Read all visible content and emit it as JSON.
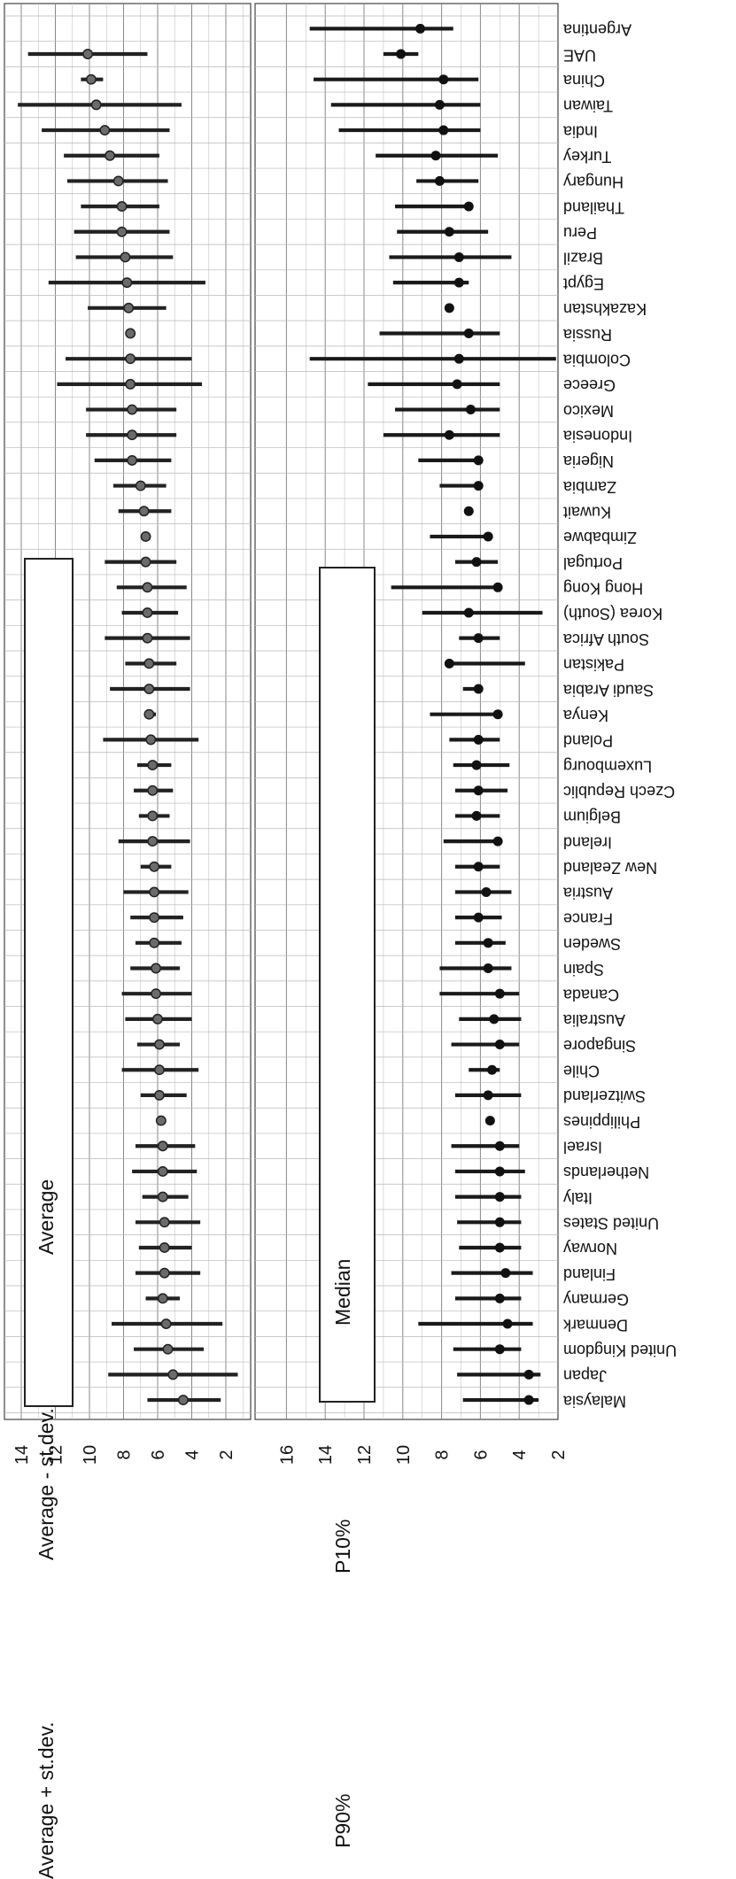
{
  "chart_data": [
    {
      "type": "range",
      "panel": "left",
      "xlim": [
        0,
        14
      ],
      "xticks": [
        "14",
        "12",
        "10",
        "8",
        "6",
        "4",
        "2"
      ],
      "grid": true,
      "legend": [
        "Average + st.dev.",
        "Average - st.dev.",
        "Average"
      ],
      "series": [
        {
          "name": "Average + st.dev.",
          "values": [
            6.6,
            8.9,
            7.4,
            8.7,
            6.7,
            7.3,
            7.1,
            7.3,
            6.9,
            7.5,
            7.3,
            5.8,
            7.0,
            8.1,
            7.2,
            7.9,
            8.1,
            7.6,
            7.3,
            7.6,
            8.0,
            7.0,
            8.3,
            7.1,
            7.4,
            7.2,
            9.2,
            6.7,
            8.8,
            7.9,
            9.1,
            8.1,
            8.4,
            9.1,
            6.6,
            8.3,
            8.6,
            9.7,
            10.2,
            10.2,
            11.9,
            11.4,
            7.6,
            10.1,
            12.4,
            10.8,
            10.9,
            10.5,
            11.3,
            11.5,
            12.8,
            14.2,
            10.5,
            13.6
          ]
        },
        {
          "name": "Average - st.dev.",
          "values": [
            2.3,
            1.3,
            3.3,
            2.2,
            4.7,
            3.5,
            4.0,
            3.5,
            4.2,
            3.7,
            3.8,
            5.8,
            4.3,
            3.6,
            4.7,
            4.0,
            4.0,
            4.7,
            4.6,
            4.5,
            4.2,
            5.2,
            4.1,
            5.3,
            5.1,
            5.2,
            3.6,
            6.1,
            4.1,
            4.9,
            4.1,
            4.8,
            4.3,
            4.9,
            6.6,
            5.2,
            5.5,
            5.2,
            4.9,
            4.9,
            3.4,
            4.0,
            7.6,
            5.5,
            3.2,
            5.1,
            5.3,
            5.9,
            5.4,
            5.9,
            5.3,
            4.6,
            9.2,
            6.6
          ]
        },
        {
          "name": "Average",
          "values": [
            4.5,
            5.1,
            5.4,
            5.5,
            5.7,
            5.6,
            5.6,
            5.6,
            5.7,
            5.7,
            5.7,
            5.8,
            5.9,
            5.9,
            5.9,
            6.0,
            6.1,
            6.1,
            6.2,
            6.2,
            6.2,
            6.2,
            6.3,
            6.3,
            6.3,
            6.3,
            6.4,
            6.5,
            6.5,
            6.5,
            6.6,
            6.6,
            6.6,
            6.7,
            6.7,
            6.8,
            7.0,
            7.5,
            7.5,
            7.5,
            7.6,
            7.6,
            7.6,
            7.7,
            7.8,
            7.9,
            8.1,
            8.1,
            8.3,
            8.8,
            9.1,
            9.6,
            9.9,
            10.1
          ]
        }
      ]
    },
    {
      "type": "range",
      "panel": "right",
      "xlim": [
        2,
        16
      ],
      "xticks": [
        "16",
        "14",
        "12",
        "10",
        "8",
        "6",
        "4",
        "2"
      ],
      "grid": true,
      "categories": [
        "Malaysia",
        "Japan",
        "United Kingdom",
        "Denmark",
        "Germany",
        "Finland",
        "Norway",
        "United States",
        "Italy",
        "Netherlands",
        "Israel",
        "Philippines",
        "Switzerland",
        "Chile",
        "Singapore",
        "Australia",
        "Canada",
        "Spain",
        "Sweden",
        "France",
        "Austria",
        "New Zealand",
        "Ireland",
        "Belgium",
        "Czech Republic",
        "Luxembourg",
        "Poland",
        "Kenya",
        "Saudi Arabia",
        "Pakistan",
        "South Africa",
        "Korea (South)",
        "Hong Kong",
        "Portugal",
        "Zimbabwe",
        "Kuwait",
        "Zambia",
        "Nigeria",
        "Indonesia",
        "Mexico",
        "Greece",
        "Colombia",
        "Russia",
        "Kazakhstan",
        "Egypt",
        "Brazil",
        "Peru",
        "Thailand",
        "Hungary",
        "Turkey",
        "India",
        "Taiwan",
        "China",
        "UAE",
        "Argentina"
      ],
      "legend": [
        "P10%",
        "Median",
        "P90%"
      ],
      "series": [
        {
          "name": "P10%",
          "values": [
            3.0,
            2.9,
            3.9,
            3.3,
            3.9,
            3.3,
            3.9,
            3.9,
            3.9,
            3.7,
            4.0,
            5.5,
            3.9,
            5.0,
            4.0,
            3.9,
            4.0,
            4.4,
            4.7,
            4.9,
            4.4,
            5.0,
            5.0,
            5.0,
            4.6,
            4.5,
            5.0,
            5.0,
            6.1,
            3.7,
            5.0,
            2.8,
            5.1,
            5.1,
            5.5,
            6.6,
            6.1,
            6.1,
            5.0,
            5.0,
            5.0,
            2.1,
            5.0,
            7.6,
            6.6,
            4.4,
            5.6,
            6.6,
            6.1,
            5.1,
            6.0,
            6.0,
            6.1,
            9.2,
            7.4
          ]
        },
        {
          "name": "Median",
          "values": [
            3.5,
            3.5,
            5.0,
            4.6,
            5.0,
            4.7,
            5.0,
            5.0,
            5.0,
            5.0,
            5.0,
            5.5,
            5.6,
            5.4,
            5.0,
            5.3,
            5.0,
            5.6,
            5.6,
            6.1,
            5.7,
            6.1,
            5.1,
            6.2,
            6.1,
            6.2,
            6.1,
            5.1,
            6.1,
            7.6,
            6.1,
            6.6,
            5.1,
            6.2,
            5.6,
            6.6,
            6.1,
            6.1,
            7.6,
            6.5,
            7.2,
            7.1,
            6.6,
            7.6,
            7.1,
            7.1,
            7.6,
            6.6,
            8.1,
            8.3,
            7.9,
            8.1,
            7.9,
            10.1,
            9.1
          ]
        },
        {
          "name": "P90%",
          "values": [
            6.9,
            7.2,
            7.4,
            9.2,
            7.3,
            7.5,
            7.1,
            7.2,
            7.3,
            7.3,
            7.5,
            5.5,
            7.3,
            6.6,
            7.5,
            7.1,
            8.1,
            8.1,
            7.3,
            7.3,
            7.3,
            7.3,
            7.9,
            7.3,
            7.3,
            7.4,
            7.6,
            8.6,
            6.9,
            7.6,
            7.1,
            9.0,
            10.6,
            7.3,
            8.6,
            6.6,
            8.1,
            9.2,
            11.0,
            10.4,
            11.8,
            14.8,
            11.2,
            7.6,
            10.5,
            10.7,
            10.3,
            10.4,
            9.3,
            11.4,
            13.3,
            13.7,
            14.6,
            11.0,
            14.8
          ]
        }
      ]
    }
  ]
}
